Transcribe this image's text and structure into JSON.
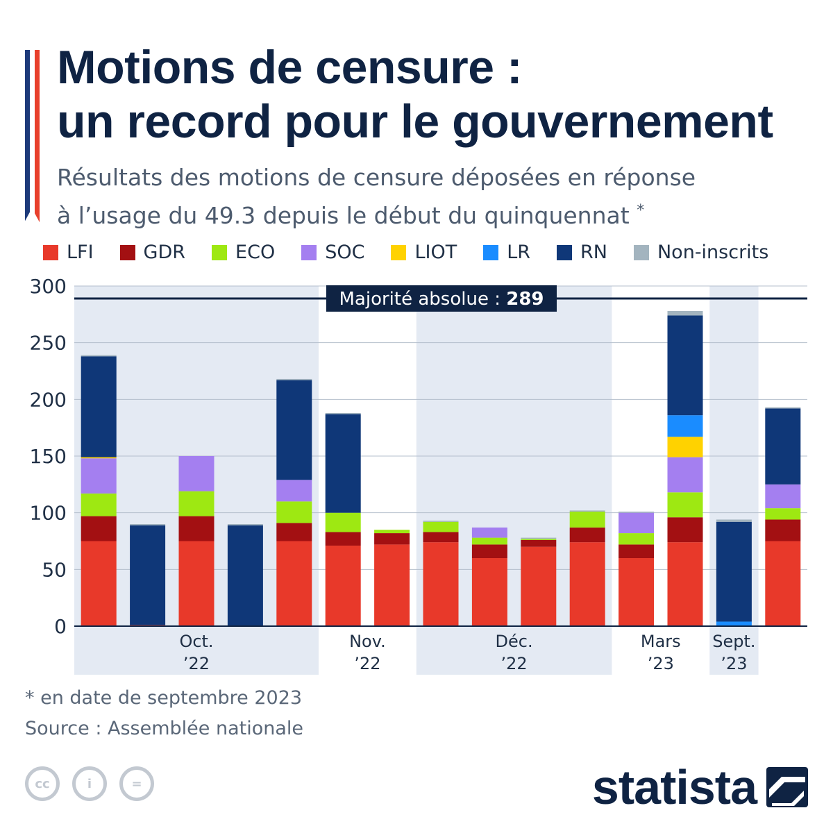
{
  "header": {
    "title_line1": "Motions de censure :",
    "title_line2": "un record pour le gouvernement",
    "subtitle_line1": "Résultats des motions de censure déposées en réponse",
    "subtitle_line2": "à l’usage du 49.3 depuis le début du quinquennat",
    "subtitle_mark": "*"
  },
  "colors": {
    "LFI": "#e8392a",
    "GDR": "#a31012",
    "ECO": "#9ee812",
    "SOC": "#a47ff0",
    "LIOT": "#ffd200",
    "LR": "#1a8cff",
    "RN": "#0f3778",
    "Non-inscrits": "#a3b4bf"
  },
  "legend": [
    {
      "key": "LFI",
      "label": "LFI"
    },
    {
      "key": "GDR",
      "label": "GDR"
    },
    {
      "key": "ECO",
      "label": "ECO"
    },
    {
      "key": "SOC",
      "label": "SOC"
    },
    {
      "key": "LIOT",
      "label": "LIOT"
    },
    {
      "key": "LR",
      "label": "LR"
    },
    {
      "key": "RN",
      "label": "RN"
    },
    {
      "key": "Non-inscrits",
      "label": "Non-inscrits"
    }
  ],
  "chart_data": {
    "type": "bar",
    "stacked": true,
    "ylim": [
      0,
      300
    ],
    "yticks": [
      0,
      50,
      100,
      150,
      200,
      250,
      300
    ],
    "grid": true,
    "reference_line": {
      "value": 289,
      "label": "Majorité absolue : ",
      "value_label": "289"
    },
    "groups": [
      {
        "label_line1": "Oct.",
        "label_line2": "’22",
        "bars": 5
      },
      {
        "label_line1": "Nov.",
        "label_line2": "’22",
        "bars": 2
      },
      {
        "label_line1": "Déc.",
        "label_line2": "’22",
        "bars": 4
      },
      {
        "label_line1": "Mars",
        "label_line2": "’23",
        "bars": 2
      },
      {
        "label_line1": "Sept.",
        "label_line2": "’23",
        "bars": 1
      }
    ],
    "series_order": [
      "LFI",
      "GDR",
      "ECO",
      "SOC",
      "LIOT",
      "LR",
      "RN",
      "Non-inscrits"
    ],
    "bars": [
      {
        "LFI": 75,
        "GDR": 22,
        "ECO": 20,
        "SOC": 31,
        "LIOT": 1,
        "LR": 0,
        "RN": 89,
        "Non-inscrits": 1
      },
      {
        "LFI": 1,
        "GDR": 0,
        "ECO": 0,
        "SOC": 0,
        "LIOT": 0,
        "LR": 0,
        "RN": 88,
        "Non-inscrits": 1
      },
      {
        "LFI": 75,
        "GDR": 22,
        "ECO": 22,
        "SOC": 31,
        "LIOT": 0,
        "LR": 0,
        "RN": 0,
        "Non-inscrits": 0
      },
      {
        "LFI": 0,
        "GDR": 0,
        "ECO": 0,
        "SOC": 0,
        "LIOT": 0,
        "LR": 0,
        "RN": 89,
        "Non-inscrits": 1
      },
      {
        "LFI": 75,
        "GDR": 16,
        "ECO": 19,
        "SOC": 19,
        "LIOT": 0,
        "LR": 0,
        "RN": 88,
        "Non-inscrits": 1
      },
      {
        "LFI": 71,
        "GDR": 12,
        "ECO": 17,
        "SOC": 0,
        "LIOT": 0,
        "LR": 0,
        "RN": 87,
        "Non-inscrits": 1
      },
      {
        "LFI": 72,
        "GDR": 10,
        "ECO": 3,
        "SOC": 0,
        "LIOT": 0,
        "LR": 0,
        "RN": 0,
        "Non-inscrits": 0
      },
      {
        "LFI": 74,
        "GDR": 9,
        "ECO": 9,
        "SOC": 0,
        "LIOT": 0,
        "LR": 0,
        "RN": 0,
        "Non-inscrits": 1
      },
      {
        "LFI": 60,
        "GDR": 12,
        "ECO": 6,
        "SOC": 9,
        "LIOT": 0,
        "LR": 0,
        "RN": 0,
        "Non-inscrits": 0
      },
      {
        "LFI": 70,
        "GDR": 6,
        "ECO": 1,
        "SOC": 0,
        "LIOT": 0,
        "LR": 0,
        "RN": 0,
        "Non-inscrits": 1
      },
      {
        "LFI": 74,
        "GDR": 13,
        "ECO": 14,
        "SOC": 0,
        "LIOT": 0,
        "LR": 0,
        "RN": 0,
        "Non-inscrits": 1
      },
      {
        "LFI": 60,
        "GDR": 12,
        "ECO": 10,
        "SOC": 18,
        "LIOT": 0,
        "LR": 0,
        "RN": 0,
        "Non-inscrits": 1
      },
      {
        "LFI": 74,
        "GDR": 22,
        "ECO": 22,
        "SOC": 31,
        "LIOT": 18,
        "LR": 19,
        "RN": 88,
        "Non-inscrits": 4
      },
      {
        "LFI": 0,
        "GDR": 0,
        "ECO": 0,
        "SOC": 0,
        "LIOT": 0,
        "LR": 4,
        "RN": 88,
        "Non-inscrits": 2
      },
      {
        "LFI": 75,
        "GDR": 19,
        "ECO": 10,
        "SOC": 21,
        "LIOT": 0,
        "LR": 0,
        "RN": 67,
        "Non-inscrits": 1
      }
    ]
  },
  "footer": {
    "footnote": "* en date de septembre 2023",
    "source": "Source : Assemblée nationale",
    "license_icons": [
      {
        "name": "cc-icon",
        "glyph": "cc"
      },
      {
        "name": "by-icon",
        "glyph": "i"
      },
      {
        "name": "nd-icon",
        "glyph": "="
      }
    ],
    "brand": "statista"
  }
}
